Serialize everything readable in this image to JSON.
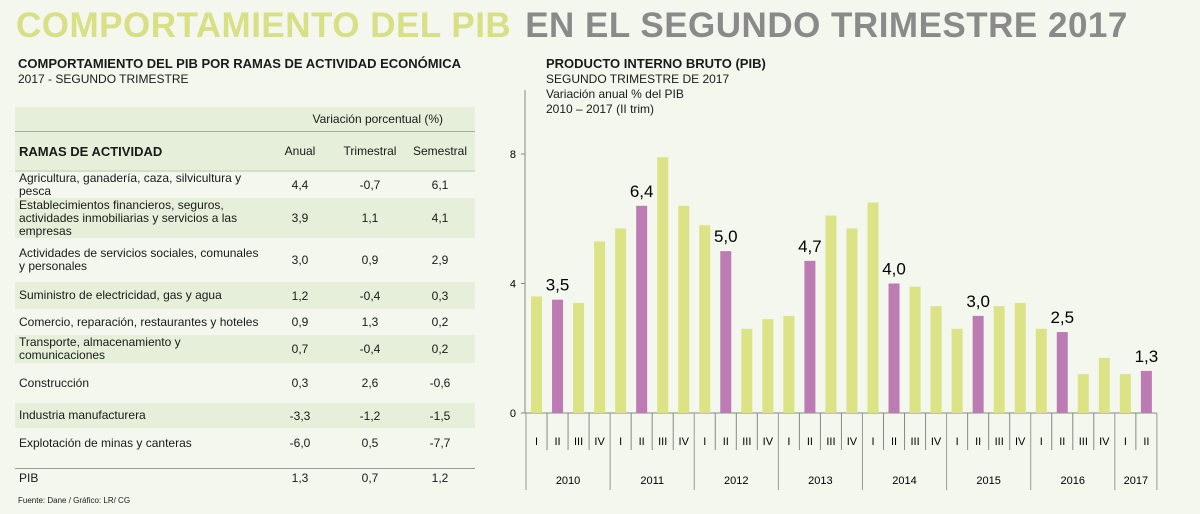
{
  "title": {
    "part1": "COMPORTAMIENTO DEL PIB",
    "part2": "EN EL SEGUNDO TRIMESTRE 2017"
  },
  "table_section": {
    "title": "COMPORTAMIENTO DEL PIB POR RAMAS DE ACTIVIDAD ECONÓMICA",
    "subtitle": "2017 - SEGUNDO TRIMESTRE",
    "group_header": "Variación porcentual (%)",
    "columns": [
      "RAMAS DE ACTIVIDAD",
      "Anual",
      "Trimestral",
      "Semestral"
    ],
    "rows": [
      {
        "name": "Agricultura, ganadería, caza, silvicultura y pesca",
        "anual": "4,4",
        "trimestral": "-0,7",
        "semestral": "6,1"
      },
      {
        "name": "Establecimientos financieros, seguros, actividades inmobiliarias y servicios a las empresas",
        "anual": "3,9",
        "trimestral": "1,1",
        "semestral": "4,1"
      },
      {
        "name": "Actividades de servicios sociales, comunales y personales",
        "anual": "3,0",
        "trimestral": "0,9",
        "semestral": "2,9"
      },
      {
        "name": "Suministro de electricidad, gas y agua",
        "anual": "1,2",
        "trimestral": "-0,4",
        "semestral": "0,3"
      },
      {
        "name": "Comercio, reparación, restaurantes y hoteles",
        "anual": "0,9",
        "trimestral": "1,3",
        "semestral": "0,2"
      },
      {
        "name": "Transporte, almacenamiento y comunicaciones",
        "anual": "0,7",
        "trimestral": "-0,4",
        "semestral": "0,2"
      },
      {
        "name": "Construcción",
        "anual": "0,3",
        "trimestral": "2,6",
        "semestral": "-0,6"
      },
      {
        "name": "Industria manufacturera",
        "anual": "-3,3",
        "trimestral": "-1,2",
        "semestral": "-1,5"
      },
      {
        "name": "Explotación de minas y canteras",
        "anual": "-6,0",
        "trimestral": "0,5",
        "semestral": "-7,7"
      }
    ],
    "total": {
      "name": "PIB",
      "anual": "1,3",
      "trimestral": "0,7",
      "semestral": "1,2"
    },
    "source": "Fuente: Dane / Gráfico: LR/ CG"
  },
  "chart_data": {
    "type": "bar",
    "title": "PRODUCTO INTERNO BRUTO (PIB)",
    "subtitle_lines": [
      "SEGUNDO TRIMESTRE DE 2017",
      "Variación anual % del PIB",
      "2010 – 2017 (II trim)"
    ],
    "ylim": [
      0,
      8
    ],
    "yticks": [
      "0",
      "4",
      "8"
    ],
    "years": [
      "2010",
      "2011",
      "2012",
      "2013",
      "2014",
      "2015",
      "2016",
      "2017"
    ],
    "quarters": [
      "I",
      "II",
      "III",
      "IV"
    ],
    "colors": {
      "default": "#dbe386",
      "highlight": "#bd7bb3"
    },
    "categories": [
      "2010 I",
      "2010 II",
      "2010 III",
      "2010 IV",
      "2011 I",
      "2011 II",
      "2011 III",
      "2011 IV",
      "2012 I",
      "2012 II",
      "2012 III",
      "2012 IV",
      "2013 I",
      "2013 II",
      "2013 III",
      "2013 IV",
      "2014 I",
      "2014 II",
      "2014 III",
      "2014 IV",
      "2015 I",
      "2015 II",
      "2015 III",
      "2015 IV",
      "2016 I",
      "2016 II",
      "2016 III",
      "2016 IV",
      "2017 I",
      "2017 II"
    ],
    "values": [
      3.6,
      3.5,
      3.4,
      5.3,
      5.7,
      6.4,
      7.9,
      6.4,
      5.8,
      5.0,
      2.6,
      2.9,
      3.0,
      4.7,
      6.1,
      5.7,
      6.5,
      4.0,
      3.9,
      3.3,
      2.6,
      3.0,
      3.3,
      3.4,
      2.6,
      2.5,
      1.2,
      1.7,
      1.2,
      1.3
    ],
    "highlighted": [
      1,
      5,
      9,
      13,
      17,
      21,
      25,
      29
    ],
    "data_labels": {
      "1": "3,5",
      "5": "6,4",
      "9": "5,0",
      "13": "4,7",
      "17": "4,0",
      "21": "3,0",
      "25": "2,5",
      "29": "1,3"
    }
  }
}
